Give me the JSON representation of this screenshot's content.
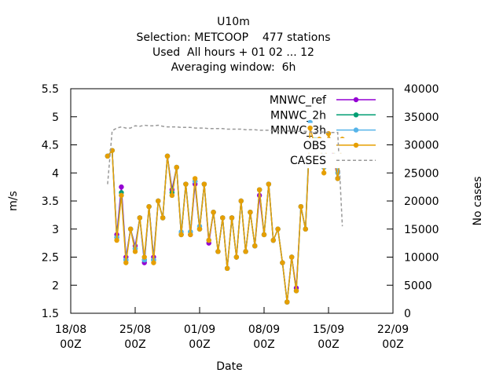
{
  "chart_data": {
    "type": "line",
    "title": [
      "U10m",
      "Selection: METCOOP    477 stations",
      "Used  All hours + 01 02 ... 12",
      "Averaging window:  6h"
    ],
    "xlabel": "Date",
    "ylabel": "m/s",
    "y2label": "No cases",
    "x": [
      "22/08 00Z",
      "22/08 12Z",
      "23/08 00Z",
      "23/08 12Z",
      "24/08 00Z",
      "24/08 12Z",
      "25/08 00Z",
      "25/08 12Z",
      "26/08 00Z",
      "26/08 12Z",
      "27/08 00Z",
      "27/08 12Z",
      "28/08 00Z",
      "28/08 12Z",
      "29/08 00Z",
      "29/08 12Z",
      "30/08 00Z",
      "30/08 12Z",
      "31/08 00Z",
      "31/08 12Z",
      "01/09 00Z",
      "01/09 12Z",
      "02/09 00Z",
      "02/09 12Z",
      "03/09 00Z",
      "03/09 12Z",
      "04/09 00Z",
      "04/09 12Z",
      "05/09 00Z",
      "05/09 12Z",
      "06/09 00Z",
      "06/09 12Z",
      "07/09 00Z",
      "07/09 12Z",
      "08/09 00Z",
      "08/09 12Z",
      "09/09 00Z",
      "09/09 12Z",
      "10/09 00Z",
      "10/09 12Z",
      "11/09 00Z",
      "11/09 12Z",
      "12/09 00Z",
      "12/09 12Z",
      "13/09 00Z",
      "13/09 12Z",
      "14/09 00Z",
      "14/09 12Z",
      "15/09 00Z",
      "15/09 12Z",
      "16/09 00Z",
      "16/09 12Z"
    ],
    "series": [
      {
        "name": "MNWC_ref",
        "color": "#9400d3",
        "values": [
          4.3,
          4.4,
          2.9,
          3.75,
          2.5,
          3.0,
          2.7,
          3.2,
          2.4,
          3.4,
          2.5,
          3.5,
          3.2,
          4.3,
          3.7,
          4.1,
          2.9,
          3.8,
          2.9,
          3.8,
          3.0,
          3.8,
          2.75,
          3.3,
          2.6,
          3.2,
          2.3,
          3.2,
          2.5,
          3.5,
          2.6,
          3.3,
          2.7,
          3.6,
          2.9,
          3.8,
          2.8,
          3.0,
          2.4,
          1.7,
          2.5,
          1.95,
          3.4,
          3.0,
          4.8,
          4.6,
          4.6,
          4.1,
          4.7,
          4.3,
          3.9,
          4.6
        ]
      },
      {
        "name": "MNWC_2h",
        "color": "#009e73",
        "values": [
          4.3,
          4.4,
          2.85,
          3.65,
          2.45,
          3.0,
          2.65,
          3.2,
          2.45,
          3.4,
          2.45,
          3.5,
          3.2,
          4.3,
          3.65,
          4.1,
          2.9,
          3.8,
          2.95,
          3.85,
          3.0,
          3.8,
          2.8,
          3.3,
          2.6,
          3.2,
          2.3,
          3.2,
          2.5,
          3.5,
          2.6,
          3.3,
          2.7,
          3.7,
          2.9,
          3.8,
          2.8,
          3.0,
          2.4,
          1.7,
          2.5,
          1.9,
          3.4,
          3.0,
          4.9,
          4.6,
          4.7,
          4.1,
          4.7,
          4.4,
          3.9,
          4.6
        ]
      },
      {
        "name": "MNWC_3h",
        "color": "#56b4e9",
        "values": [
          4.3,
          4.4,
          2.85,
          3.6,
          2.45,
          3.0,
          2.65,
          3.2,
          2.45,
          3.4,
          2.45,
          3.5,
          3.2,
          4.3,
          3.6,
          4.1,
          2.95,
          3.8,
          2.95,
          3.85,
          3.05,
          3.8,
          2.8,
          3.3,
          2.6,
          3.2,
          2.3,
          3.2,
          2.5,
          3.5,
          2.6,
          3.3,
          2.7,
          3.7,
          2.9,
          3.8,
          2.8,
          3.0,
          2.4,
          1.7,
          2.5,
          1.9,
          3.4,
          3.0,
          4.9,
          4.7,
          4.7,
          4.1,
          4.7,
          4.5,
          4.0,
          4.6
        ]
      },
      {
        "name": "OBS",
        "color": "#e69f00",
        "values": [
          4.3,
          4.4,
          2.8,
          3.6,
          2.4,
          3.0,
          2.6,
          3.2,
          2.5,
          3.4,
          2.4,
          3.5,
          3.2,
          4.3,
          3.6,
          4.1,
          2.9,
          3.8,
          2.9,
          3.9,
          3.0,
          3.8,
          2.8,
          3.3,
          2.6,
          3.2,
          2.3,
          3.2,
          2.5,
          3.5,
          2.6,
          3.3,
          2.7,
          3.7,
          2.9,
          3.8,
          2.8,
          3.0,
          2.4,
          1.7,
          2.5,
          1.9,
          3.4,
          3.0,
          4.8,
          4.5,
          4.6,
          4.0,
          4.7,
          4.4,
          3.9,
          4.6
        ]
      },
      {
        "name": "CASES",
        "color": "#999999",
        "axis": "y2",
        "dashed": true,
        "values": [
          23000,
          32500,
          33000,
          33200,
          33000,
          33000,
          33400,
          33300,
          33500,
          33400,
          33400,
          33500,
          33300,
          33200,
          33200,
          33200,
          33100,
          33100,
          33100,
          33000,
          33000,
          33000,
          32900,
          32900,
          32900,
          32900,
          32800,
          32800,
          32800,
          32800,
          32700,
          32700,
          32700,
          32600,
          32600,
          32600,
          32500,
          32500,
          32500,
          32500,
          32400,
          32400,
          32400,
          32400,
          32300,
          32300,
          32300,
          32300,
          32200,
          32200,
          32200,
          15500
        ]
      }
    ],
    "xlim": [
      "18/08 00Z",
      "22/09 00Z"
    ],
    "xticks": [
      "18/08 00Z",
      "25/08 00Z",
      "01/09 00Z",
      "08/09 00Z",
      "15/09 00Z",
      "22/09 00Z"
    ],
    "ylim": [
      1.5,
      5.5
    ],
    "yticks": [
      1.5,
      2,
      2.5,
      3,
      3.5,
      4,
      4.5,
      5,
      5.5
    ],
    "y2lim": [
      0,
      40000
    ],
    "y2ticks": [
      0,
      5000,
      10000,
      15000,
      20000,
      25000,
      30000,
      35000,
      40000
    ],
    "legend": "top-right"
  }
}
